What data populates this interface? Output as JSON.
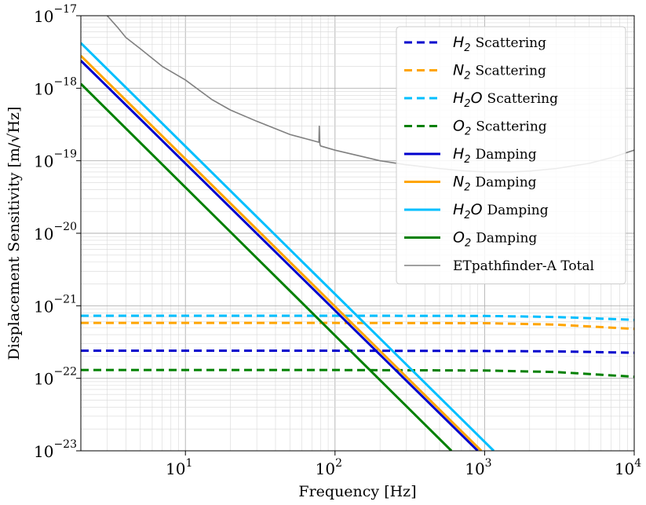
{
  "chart_data": {
    "type": "line",
    "xlabel": "Frequency [Hz]",
    "ylabel": "Displacement Sensitivity [m/√Hz]",
    "xscale": "log",
    "yscale": "log",
    "xlim": [
      2,
      10000
    ],
    "ylim": [
      1e-23,
      1e-17
    ],
    "grid": "major and minor",
    "legend_position": "top-right",
    "x_ticks": [
      {
        "value": 10,
        "base": "10",
        "exp": "1"
      },
      {
        "value": 100,
        "base": "10",
        "exp": "2"
      },
      {
        "value": 1000,
        "base": "10",
        "exp": "3"
      },
      {
        "value": 10000,
        "base": "10",
        "exp": "4"
      }
    ],
    "y_ticks": [
      {
        "value": 1e-23,
        "base": "10",
        "exp": "−23"
      },
      {
        "value": 1e-22,
        "base": "10",
        "exp": "−22"
      },
      {
        "value": 1e-21,
        "base": "10",
        "exp": "−21"
      },
      {
        "value": 1e-20,
        "base": "10",
        "exp": "−20"
      },
      {
        "value": 1e-19,
        "base": "10",
        "exp": "−19"
      },
      {
        "value": 1e-18,
        "base": "10",
        "exp": "−18"
      },
      {
        "value": 1e-17,
        "base": "10",
        "exp": "−17"
      }
    ],
    "series": [
      {
        "name": "Scattering",
        "species": "H",
        "sub": "2",
        "color": "#0000cd",
        "dash": true,
        "x": [
          2,
          100,
          1000,
          3000,
          10000
        ],
        "y": [
          2.4e-22,
          2.4e-22,
          2.38e-22,
          2.35e-22,
          2.25e-22
        ]
      },
      {
        "name": "Scattering",
        "species": "N",
        "sub": "2",
        "color": "#ffa500",
        "dash": true,
        "x": [
          2,
          100,
          1000,
          3000,
          10000
        ],
        "y": [
          5.8e-22,
          5.8e-22,
          5.75e-22,
          5.5e-22,
          4.8e-22
        ]
      },
      {
        "name": "Scattering",
        "species": "H",
        "sub": "2",
        "species2": "O",
        "color": "#00bfff",
        "dash": true,
        "x": [
          2,
          100,
          1000,
          3000,
          10000
        ],
        "y": [
          7.3e-22,
          7.3e-22,
          7.25e-22,
          7e-22,
          6.4e-22
        ]
      },
      {
        "name": "Scattering",
        "species": "O",
        "sub": "2",
        "color": "#008000",
        "dash": true,
        "x": [
          2,
          100,
          1000,
          3000,
          10000
        ],
        "y": [
          1.3e-22,
          1.3e-22,
          1.28e-22,
          1.22e-22,
          1.05e-22
        ]
      },
      {
        "name": "Damping",
        "species": "H",
        "sub": "2",
        "color": "#0000cd",
        "dash": false,
        "x": [
          2,
          900
        ],
        "y": [
          2.4e-18,
          1e-23
        ]
      },
      {
        "name": "Damping",
        "species": "N",
        "sub": "2",
        "color": "#ffa500",
        "dash": false,
        "x": [
          2,
          950
        ],
        "y": [
          2.8e-18,
          1e-23
        ]
      },
      {
        "name": "Damping",
        "species": "H",
        "sub": "2",
        "species2": "O",
        "color": "#00bfff",
        "dash": false,
        "x": [
          2,
          1150
        ],
        "y": [
          4.2e-18,
          1e-23
        ]
      },
      {
        "name": "Damping",
        "species": "O",
        "sub": "2",
        "color": "#008000",
        "dash": false,
        "x": [
          2,
          600
        ],
        "y": [
          1.15e-18,
          1e-23
        ]
      },
      {
        "name": "ETpathfinder-A Total",
        "color": "#808080",
        "dash": false,
        "thin": true,
        "x": [
          3.0,
          3.5,
          4,
          5,
          7,
          10,
          15,
          20,
          30,
          50,
          78,
          78.5,
          79,
          79.5,
          80,
          100,
          150,
          200,
          300,
          500,
          700,
          1000,
          1500,
          2000,
          3000,
          5000,
          7000,
          10000
        ],
        "y": [
          1e-17,
          7e-18,
          5e-18,
          3.5e-18,
          2e-18,
          1.3e-18,
          7e-19,
          5e-19,
          3.5e-19,
          2.3e-19,
          1.8e-19,
          3e-19,
          1.8e-19,
          1.65e-19,
          1.6e-19,
          1.4e-19,
          1.15e-19,
          1e-19,
          8.8e-20,
          7.8e-20,
          7.3e-20,
          7e-20,
          7e-20,
          7.2e-20,
          7.8e-20,
          9.2e-20,
          1.1e-19,
          1.4e-19
        ]
      }
    ]
  }
}
